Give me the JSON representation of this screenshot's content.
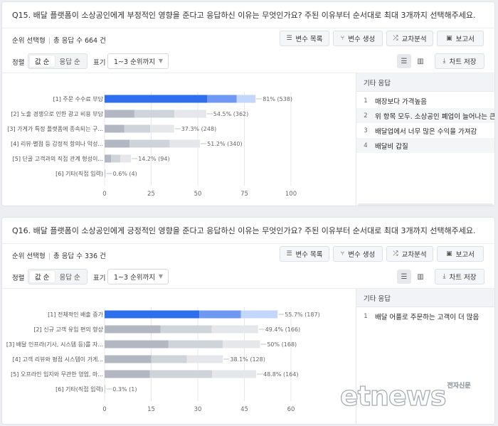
{
  "colors": {
    "dark": "#2f6fed",
    "mid": "#6e98f3",
    "light": "#c3d6fb",
    "gray_dark": "#b2b7c2",
    "gray_mid": "#cfd3da",
    "gray_light": "#e5e7eb",
    "grid": "#e6e8ec",
    "label": "#555555",
    "value": "#666666"
  },
  "toolbar": {
    "var_list": "변수 목록",
    "var_create": "변수 생성",
    "cross": "교차분석",
    "report": "보고서",
    "sort_label": "정렬",
    "sort_value": "값 순",
    "sort_response": "응답 순",
    "display_label": "표기",
    "display_select": "1~3 순위까지",
    "save_chart": "차트 저장"
  },
  "panels": [
    {
      "title": "Q15. 배달 플랫폼이 소상공인에게 부정적인 영향을 준다고 응답하신 이유는 무엇인가요? 주된 이유부터 순서대로 최대 3개까지 선택해주세요.",
      "type": "순위 선택형",
      "total": "총 응답 수 664 건",
      "side_title": "기타 응답",
      "side_items": [
        {
          "n": "1",
          "text": "매장보다 가격높음"
        },
        {
          "n": "2",
          "text": "위 항목 모두. 소상공인 폐업이 늘어나는 큰 이유 중 하나"
        },
        {
          "n": "3",
          "text": "배달업에서 너무 많은 수익을 가져감"
        },
        {
          "n": "4",
          "text": "배달비 갑질"
        }
      ],
      "chart_data": {
        "type": "bar",
        "orientation": "horizontal",
        "stacked": true,
        "xlim": [
          0,
          100
        ],
        "xticks": [
          0,
          25,
          50,
          75,
          100
        ],
        "categories": [
          "[1] 주문 수수료 부담",
          "[2] 노출 경쟁으로 인한 광고 비용 부담",
          "[3] 가게가 특정 플랫폼에 종속되는 구...",
          "[4] 리뷰·별점 등 감정적 항의나 악성...",
          "[5] 단골 고객과의 직접 관계 형성이...",
          "[6] 기타(직접 입력)"
        ],
        "highlight_index": 0,
        "segments": [
          [
            55.1,
            15.8,
            10.1
          ],
          [
            16.0,
            21.4,
            17.1
          ],
          [
            10.5,
            14.0,
            12.8
          ],
          [
            13.4,
            21.5,
            16.3
          ],
          [
            3.5,
            5.0,
            5.7
          ],
          [
            0.2,
            0.2,
            0.2
          ]
        ],
        "value_labels": [
          "81% (538)",
          "54.5% (362)",
          "37.3% (248)",
          "51.2% (340)",
          "14.2% (94)",
          "0.6% (4)"
        ]
      }
    },
    {
      "title": "Q16. 배달 플랫폼이 소상공인에게 긍정적인 영향을 준다고 응답하신 이유는 무엇인가요? 주된 이유부터 순서대로 최대 3개까지 선택해주세요.",
      "type": "순위 선택형",
      "total": "총 응답 수 336 건",
      "side_title": "기타 응답",
      "side_items": [
        {
          "n": "1",
          "text": "배달 어플로 주문하는 고객이 더 많음"
        }
      ],
      "chart_data": {
        "type": "bar",
        "orientation": "horizontal",
        "stacked": true,
        "xlim": [
          0,
          60
        ],
        "xticks": [
          0,
          15,
          30,
          45,
          60
        ],
        "categories": [
          "[1] 전체적인 배출 증가",
          "[2] 신규 고객 유입 편의 향상",
          "[3] 배달 인프라(기사, 시스템 등)를 자...",
          "[4] 고객 리뷰와 평점 시스템이 가게...",
          "[5] 오프라인 입지와 무관한 영업, 마...",
          "[6] 기타(직접 입력)"
        ],
        "highlight_index": 0,
        "segments": [
          [
            30.5,
            13.4,
            11.8
          ],
          [
            18.0,
            16.5,
            14.9
          ],
          [
            20.5,
            17.5,
            12.0
          ],
          [
            15.0,
            11.5,
            11.6
          ],
          [
            14.6,
            20.0,
            14.2
          ],
          [
            0.1,
            0.1,
            0.1
          ]
        ],
        "value_labels": [
          "55.7% (187)",
          "49.4% (166)",
          "50% (168)",
          "38.1% (128)",
          "48.8% (164)",
          "0.3% (1)"
        ]
      }
    }
  ],
  "logo": {
    "main": "etnews",
    "sub": "전자신문"
  }
}
